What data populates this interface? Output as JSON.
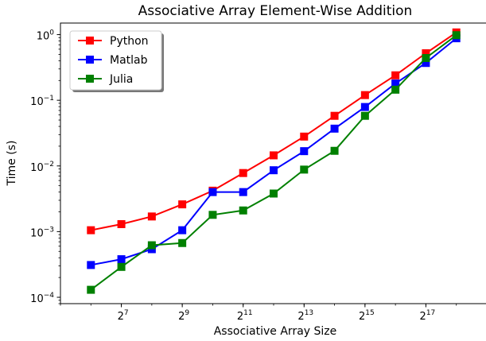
{
  "chart_data": {
    "type": "line",
    "title": "Associative Array Element-Wise Addition",
    "xlabel": "Associative Array Size",
    "ylabel": "Time (s)",
    "x_scale": "log2",
    "y_scale": "log10",
    "xlim": [
      32,
      524288
    ],
    "ylim": [
      8e-05,
      1.5
    ],
    "x": [
      64,
      128,
      256,
      512,
      1024,
      2048,
      4096,
      8192,
      16384,
      32768,
      65536,
      131072,
      262144
    ],
    "series": [
      {
        "name": "Python",
        "color": "#ff0000",
        "marker": "square",
        "values": [
          0.00105,
          0.0013,
          0.0017,
          0.0026,
          0.0042,
          0.0078,
          0.0145,
          0.028,
          0.058,
          0.12,
          0.24,
          0.52,
          1.08
        ]
      },
      {
        "name": "Matlab",
        "color": "#0000ff",
        "marker": "square",
        "values": [
          0.00031,
          0.00038,
          0.00054,
          0.00105,
          0.004,
          0.004,
          0.0086,
          0.0168,
          0.037,
          0.079,
          0.18,
          0.37,
          0.88
        ]
      },
      {
        "name": "Julia",
        "color": "#008000",
        "marker": "square",
        "values": [
          0.00013,
          0.00029,
          0.00062,
          0.00067,
          0.0018,
          0.0021,
          0.0038,
          0.0088,
          0.017,
          0.058,
          0.145,
          0.44,
          0.98
        ]
      }
    ],
    "xticks": [
      {
        "value": 128,
        "base": "2",
        "exp": "7"
      },
      {
        "value": 512,
        "base": "2",
        "exp": "9"
      },
      {
        "value": 2048,
        "base": "2",
        "exp": "11"
      },
      {
        "value": 8192,
        "base": "2",
        "exp": "13"
      },
      {
        "value": 32768,
        "base": "2",
        "exp": "15"
      },
      {
        "value": 131072,
        "base": "2",
        "exp": "17"
      }
    ],
    "yticks": [
      {
        "value": 0.0001,
        "base": "10",
        "exp": "−4"
      },
      {
        "value": 0.001,
        "base": "10",
        "exp": "−3"
      },
      {
        "value": 0.01,
        "base": "10",
        "exp": "−2"
      },
      {
        "value": 0.1,
        "base": "10",
        "exp": "−1"
      },
      {
        "value": 1,
        "base": "10",
        "exp": "0"
      }
    ],
    "grid": false,
    "legend_position": "top-left"
  }
}
